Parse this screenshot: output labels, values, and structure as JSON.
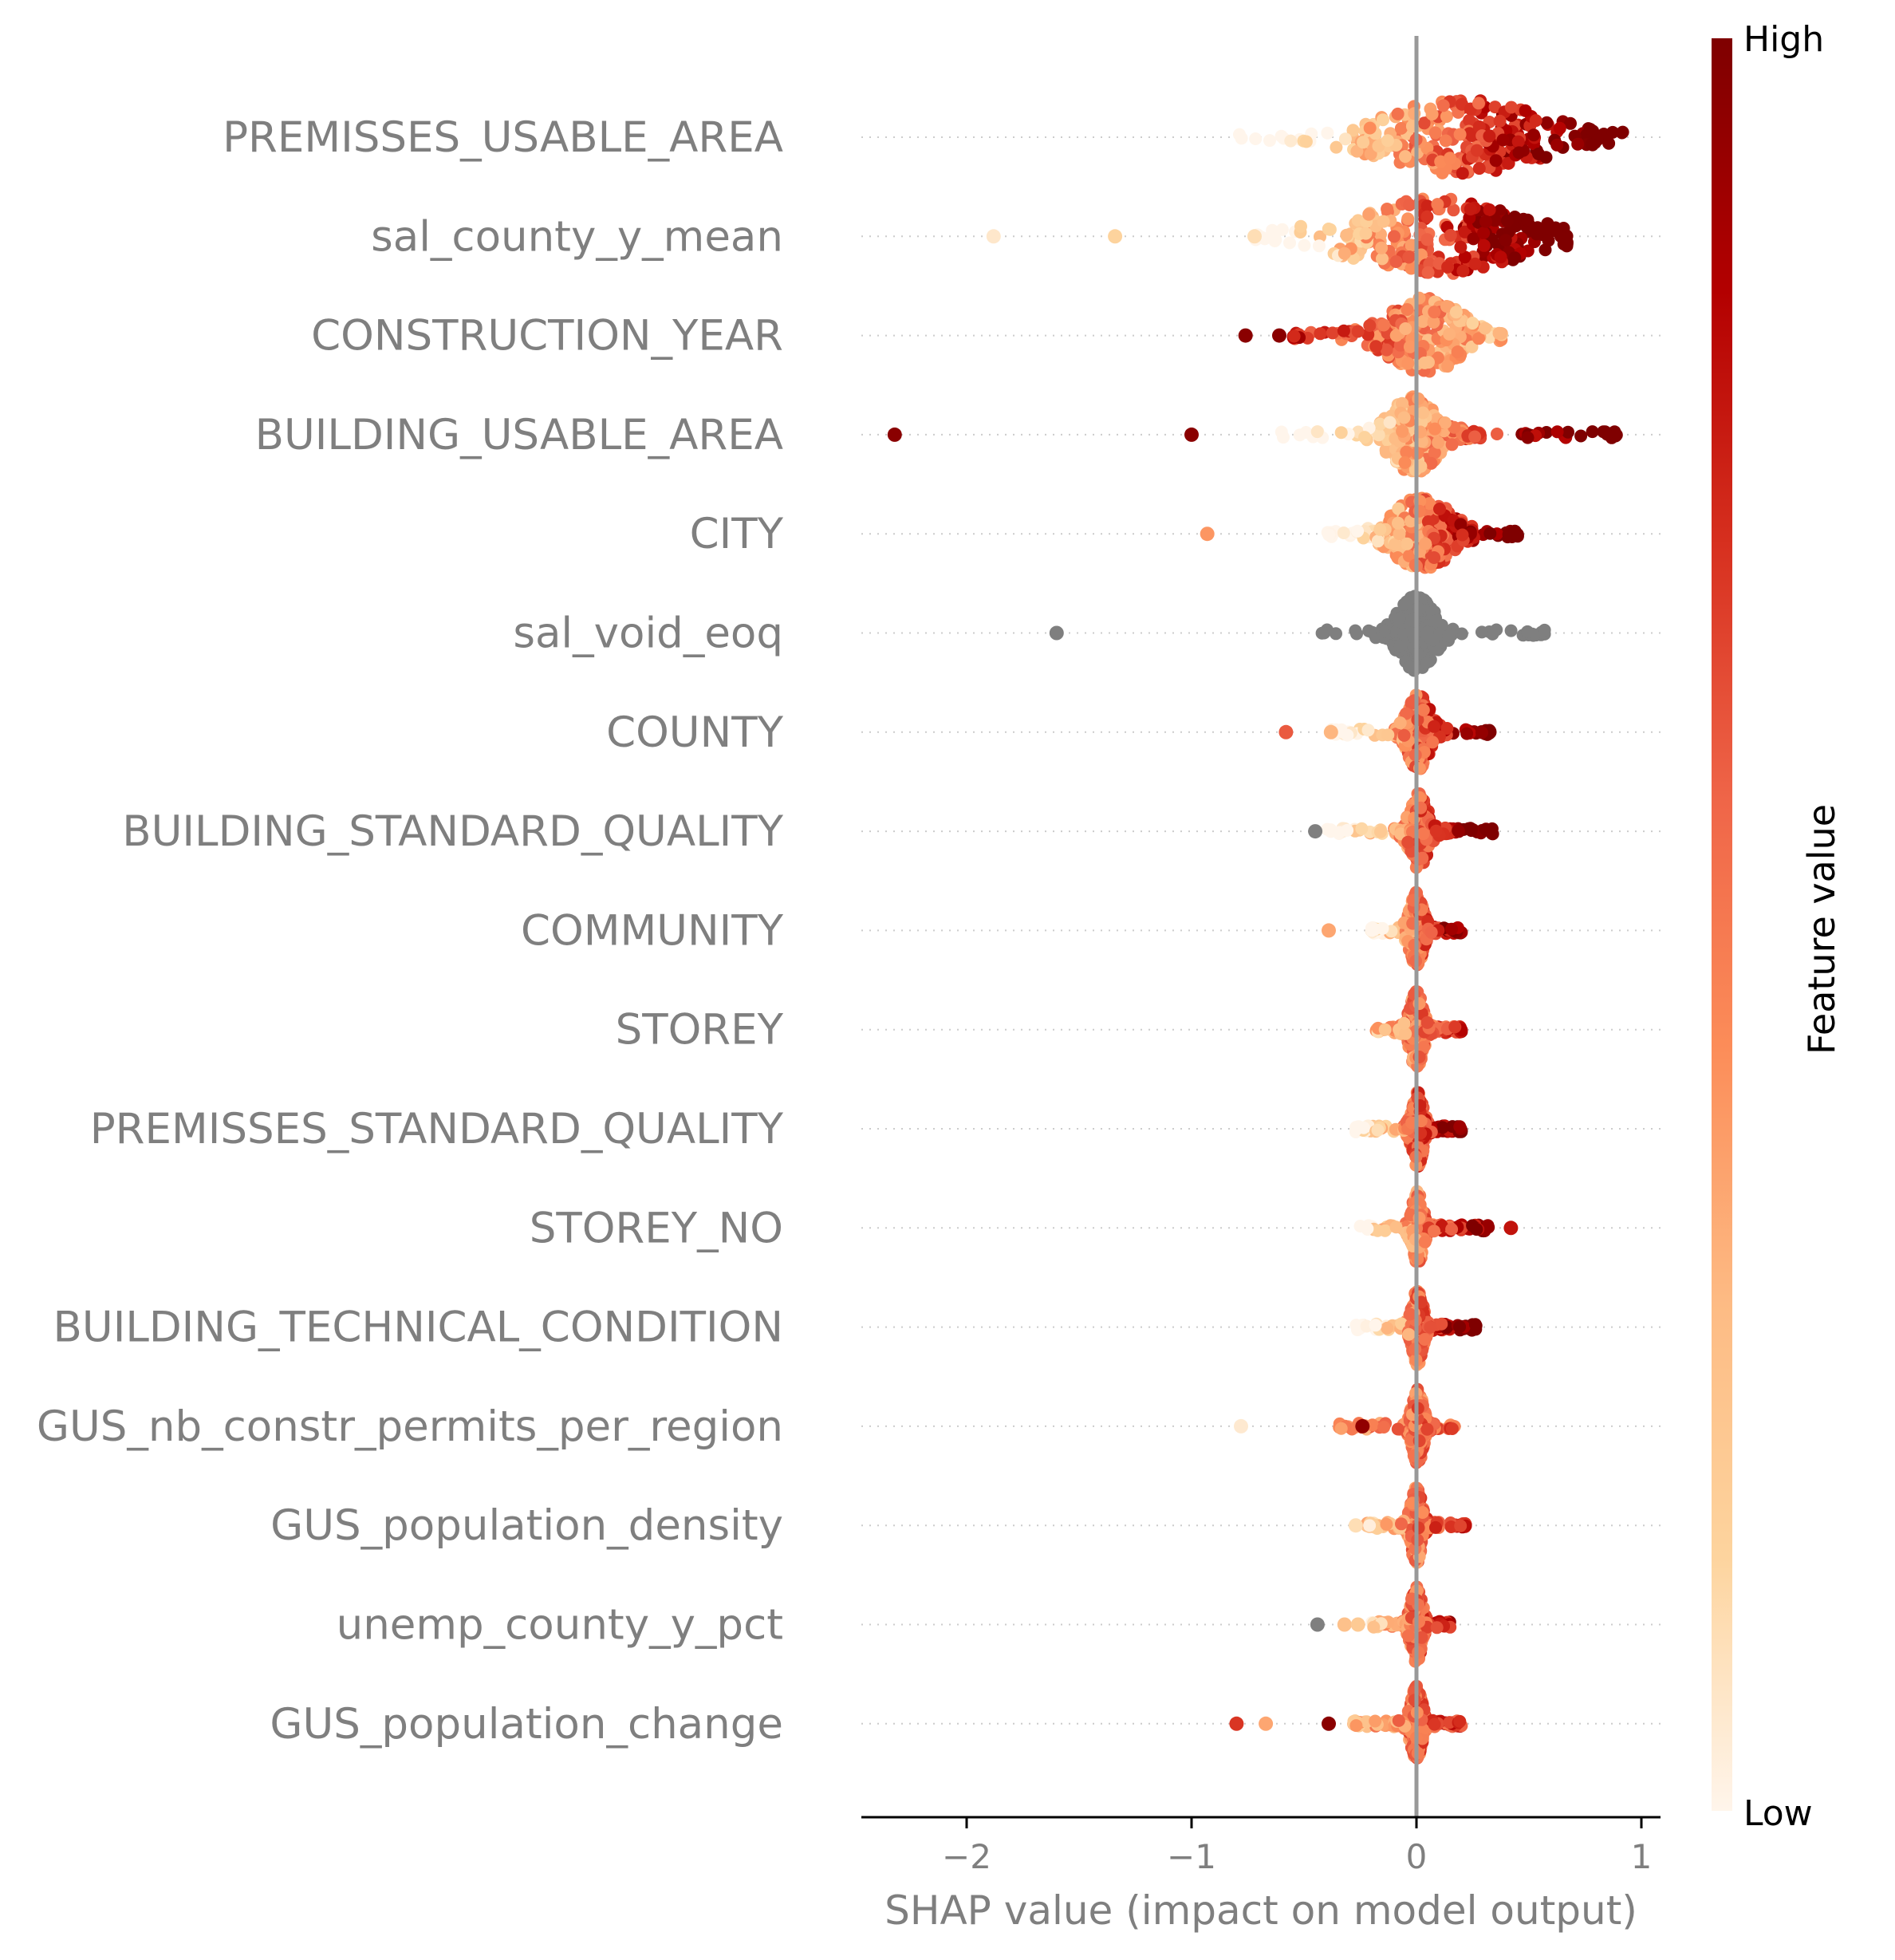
{
  "chart_data": {
    "type": "scatter",
    "subtype": "shap-beeswarm-summary",
    "xlabel": "SHAP value (impact on model output)",
    "xlim": [
      -2.45,
      1.1
    ],
    "xticks": [
      -2,
      -1,
      0,
      1
    ],
    "xtick_labels": [
      "−2",
      "−1",
      "0",
      "1"
    ],
    "zero_line": true,
    "grid": false,
    "colorbar": {
      "title": "Feature value",
      "high_label": "High",
      "low_label": "Low",
      "colors": [
        "#fff5eb",
        "#fdd49e",
        "#fdbb84",
        "#fc8d59",
        "#ef6548",
        "#d7301f",
        "#b30000",
        "#7f0000"
      ]
    },
    "missing_value_color": "#7f7f7f",
    "features": [
      {
        "name": "PREMISSES_USABLE_AREA",
        "min": -0.8,
        "max": 0.92,
        "q_low": -0.25,
        "q_high": 0.55,
        "core": [
          -0.15,
          0.55
        ],
        "corr": 0.92,
        "outliers": []
      },
      {
        "name": "sal_county_y_mean",
        "min": -0.75,
        "max": 0.67,
        "q_low": -0.35,
        "q_high": 0.45,
        "core": [
          -0.3,
          0.45
        ],
        "corr": 0.9,
        "outliers": [
          [
            -1.88,
            0.06
          ],
          [
            -1.34,
            0.15
          ],
          [
            -0.72,
            0.1
          ]
        ]
      },
      {
        "name": "CONSTRUCTION_YEAR",
        "min": -0.55,
        "max": 0.38,
        "q_low": -0.15,
        "q_high": 0.2,
        "core": [
          -0.12,
          0.2
        ],
        "corr": -0.3,
        "outliers": [
          [
            -0.76,
            0.97
          ],
          [
            -0.61,
            0.97
          ]
        ]
      },
      {
        "name": "BUILDING_USABLE_AREA",
        "min": -0.6,
        "max": 0.9,
        "q_low": -0.15,
        "q_high": 0.3,
        "core": [
          -0.12,
          0.1
        ],
        "corr": 0.95,
        "outliers": [
          [
            -2.32,
            0.97
          ],
          [
            -1.0,
            0.97
          ]
        ]
      },
      {
        "name": "CITY",
        "min": -0.4,
        "max": 0.45,
        "q_low": -0.15,
        "q_high": 0.25,
        "core": [
          -0.1,
          0.15
        ],
        "corr": 0.85,
        "outliers": [
          [
            -0.93,
            0.4
          ]
        ]
      },
      {
        "name": "sal_void_eoq",
        "min": -0.42,
        "max": 0.57,
        "q_low": -0.1,
        "q_high": 0.12,
        "core": [
          -0.08,
          0.08
        ],
        "corr": 0,
        "missing": true,
        "outliers": [
          [
            -1.6,
            -1
          ]
        ]
      },
      {
        "name": "COUNTY",
        "min": -0.38,
        "max": 0.33,
        "q_low": -0.1,
        "q_high": 0.12,
        "core": [
          -0.04,
          0.06
        ],
        "corr": 0.8,
        "outliers": [
          [
            -0.58,
            0.6
          ],
          [
            -0.38,
            0.3
          ]
        ]
      },
      {
        "name": "BUILDING_STANDARD_QUALITY",
        "min": -0.4,
        "max": 0.34,
        "q_low": -0.1,
        "q_high": 0.2,
        "core": [
          -0.03,
          0.05
        ],
        "corr": 0.85,
        "outliers": [
          [
            -0.45,
            -1
          ]
        ]
      },
      {
        "name": "COMMUNITY",
        "min": -0.2,
        "max": 0.2,
        "q_low": -0.05,
        "q_high": 0.1,
        "core": [
          -0.03,
          0.03
        ],
        "corr": 0.7,
        "outliers": [
          [
            -0.39,
            0.35
          ]
        ]
      },
      {
        "name": "STOREY",
        "min": -0.18,
        "max": 0.2,
        "q_low": -0.08,
        "q_high": 0.08,
        "core": [
          -0.03,
          0.03
        ],
        "corr": 0.3,
        "outliers": []
      },
      {
        "name": "PREMISSES_STANDARD_QUALITY",
        "min": -0.27,
        "max": 0.2,
        "q_low": -0.05,
        "q_high": 0.1,
        "core": [
          -0.02,
          0.03
        ],
        "corr": 0.7,
        "outliers": []
      },
      {
        "name": "STOREY_NO",
        "min": -0.25,
        "max": 0.32,
        "q_low": -0.05,
        "q_high": 0.15,
        "core": [
          -0.02,
          0.03
        ],
        "corr": 0.6,
        "outliers": [
          [
            0.42,
            0.8
          ]
        ]
      },
      {
        "name": "BUILDING_TECHNICAL_CONDITION",
        "min": -0.27,
        "max": 0.27,
        "q_low": -0.05,
        "q_high": 0.15,
        "core": [
          -0.02,
          0.03
        ],
        "corr": 0.9,
        "outliers": []
      },
      {
        "name": "GUS_nb_constr_permits_per_region",
        "min": -0.35,
        "max": 0.17,
        "q_low": -0.05,
        "q_high": 0.08,
        "core": [
          -0.02,
          0.03
        ],
        "corr": 0.1,
        "outliers": [
          [
            -0.78,
            0.05
          ],
          [
            -0.24,
            0.95
          ]
        ]
      },
      {
        "name": "GUS_population_density",
        "min": -0.22,
        "max": 0.22,
        "q_low": -0.08,
        "q_high": 0.1,
        "core": [
          -0.02,
          0.02
        ],
        "corr": 0.4,
        "outliers": [
          [
            -0.27,
            0.1
          ]
        ]
      },
      {
        "name": "unemp_county_y_pct",
        "min": -0.2,
        "max": 0.15,
        "q_low": -0.06,
        "q_high": 0.06,
        "core": [
          -0.02,
          0.02
        ],
        "corr": 0.4,
        "outliers": [
          [
            -0.44,
            -1
          ],
          [
            -0.32,
            0.25
          ],
          [
            -0.26,
            0.2
          ]
        ]
      },
      {
        "name": "GUS_population_change",
        "min": -0.28,
        "max": 0.2,
        "q_low": -0.1,
        "q_high": 0.1,
        "core": [
          -0.02,
          0.02
        ],
        "corr": 0.3,
        "outliers": [
          [
            -0.8,
            0.7
          ],
          [
            -0.67,
            0.35
          ],
          [
            -0.39,
            0.97
          ]
        ]
      }
    ]
  }
}
